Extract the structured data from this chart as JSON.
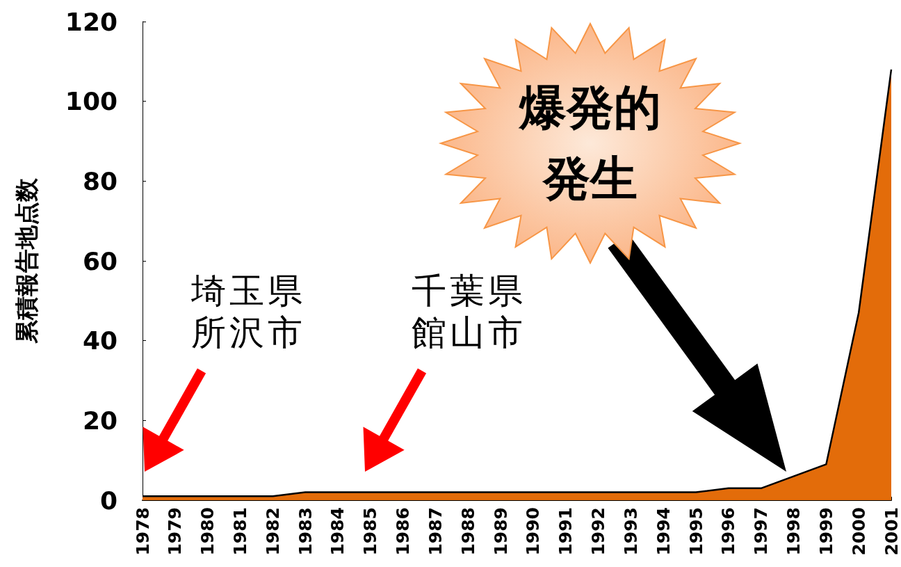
{
  "chart_data": {
    "type": "area",
    "ylabel": "累積報告地点数",
    "categories": [
      "1978",
      "1979",
      "1980",
      "1981",
      "1982",
      "1983",
      "1984",
      "1985",
      "1986",
      "1987",
      "1988",
      "1989",
      "1990",
      "1991",
      "1992",
      "1993",
      "1994",
      "1995",
      "1996",
      "1997",
      "1998",
      "1999",
      "2000",
      "2001"
    ],
    "series": [
      {
        "color": "#e36c0a",
        "values": [
          1,
          1,
          1,
          1,
          1,
          2,
          2,
          2,
          2,
          2,
          2,
          2,
          2,
          2,
          2,
          2,
          2,
          2,
          3,
          3,
          6,
          9,
          47,
          108
        ]
      }
    ],
    "ylim": [
      0,
      120
    ],
    "yticks": [
      0,
      20,
      40,
      60,
      80,
      100,
      120
    ],
    "grid": false,
    "marker": "none",
    "line_style": "solid",
    "annotations": [
      "埼玉県所沢市",
      "千葉県館山市",
      "爆発的発生"
    ]
  }
}
